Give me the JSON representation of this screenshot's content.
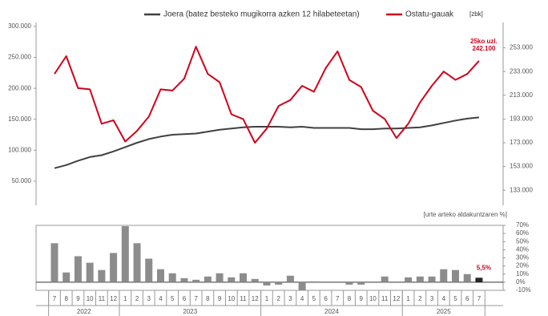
{
  "chart_data": [
    {
      "type": "line",
      "legend_position": "top",
      "y2_label": "[zbk]",
      "ylim": [
        20000,
        300000
      ],
      "yticks": [
        {
          "value": 50000,
          "label": "50.000"
        },
        {
          "value": 100000,
          "label": "100.000"
        },
        {
          "value": 150000,
          "label": "150.000"
        },
        {
          "value": 200000,
          "label": "200.000"
        },
        {
          "value": 250000,
          "label": "250.000"
        },
        {
          "value": 300000,
          "label": "300.000"
        }
      ],
      "y2lim": [
        125000,
        271000
      ],
      "y2ticks": [
        {
          "value": 133000,
          "label": "133.000"
        },
        {
          "value": 153000,
          "label": "153.000"
        },
        {
          "value": 173000,
          "label": "173.000"
        },
        {
          "value": 193000,
          "label": "193.000"
        },
        {
          "value": 213000,
          "label": "213.000"
        },
        {
          "value": 233000,
          "label": "233.000"
        },
        {
          "value": 253000,
          "label": "253.000"
        }
      ],
      "series": [
        {
          "name": "Joera (batez besteko mugikorra azken 12 hilabeteetan)",
          "color": "#404040",
          "values": [
            71000,
            76000,
            83000,
            89000,
            92000,
            98000,
            105000,
            112000,
            118000,
            122000,
            125000,
            126000,
            127000,
            130000,
            133000,
            135000,
            137000,
            138000,
            138000,
            138000,
            137000,
            138000,
            136000,
            136000,
            136000,
            136000,
            134000,
            134000,
            135000,
            135000,
            136000,
            137000,
            140000,
            144000,
            148000,
            151000,
            153000
          ]
        },
        {
          "name": "Ostatu-gauak",
          "color": "#d0021b",
          "axis": "y2",
          "values": [
            231000,
            246000,
            219000,
            218000,
            189000,
            192000,
            174000,
            183000,
            195000,
            218000,
            217000,
            227000,
            254000,
            231000,
            224000,
            197000,
            193000,
            173000,
            185000,
            204000,
            209000,
            221000,
            216000,
            236000,
            250000,
            226000,
            220000,
            200000,
            193000,
            177000,
            189000,
            207000,
            221000,
            233000,
            226000,
            231000,
            242100
          ]
        }
      ],
      "annotation": {
        "lines": [
          "25ko uzl.",
          "242.100"
        ],
        "value": 242100
      }
    },
    {
      "type": "bar",
      "y_label": "[urte arteko aldakuntzaren %]",
      "categories": [
        "7",
        "8",
        "9",
        "10",
        "11",
        "12",
        "1",
        "2",
        "3",
        "4",
        "5",
        "6",
        "7",
        "8",
        "9",
        "10",
        "11",
        "12",
        "1",
        "2",
        "3",
        "4",
        "5",
        "6",
        "7",
        "8",
        "9",
        "10",
        "11",
        "12",
        "1",
        "2",
        "3",
        "4",
        "5",
        "6",
        "7"
      ],
      "years": [
        "2022",
        "2023",
        "2024",
        "2025"
      ],
      "values": [
        48,
        12,
        32,
        24,
        15,
        36,
        69,
        48,
        29,
        16,
        11,
        5,
        3,
        7,
        11,
        6,
        11,
        4,
        -4,
        -3,
        8,
        -10,
        1,
        0,
        0,
        -3,
        -3,
        0,
        7,
        0,
        6,
        7,
        7,
        16,
        15,
        10,
        5.5
      ],
      "value_labels": [
        null,
        null,
        null,
        null,
        null,
        null,
        null,
        null,
        null,
        null,
        null,
        null,
        null,
        null,
        null,
        null,
        null,
        null,
        null,
        null,
        null,
        null,
        null,
        null,
        null,
        null,
        null,
        null,
        null,
        null,
        null,
        null,
        null,
        null,
        null,
        null,
        "5,5%"
      ],
      "color": "#8c8c8c",
      "highlight_color": "#262626",
      "ylim": [
        -10,
        70
      ],
      "yticks": [
        {
          "value": -10,
          "label": "-10%"
        },
        {
          "value": 0,
          "label": "0%"
        },
        {
          "value": 10,
          "label": "10%"
        },
        {
          "value": 20,
          "label": "20%"
        },
        {
          "value": 30,
          "label": "30%"
        },
        {
          "value": 40,
          "label": "40%"
        },
        {
          "value": 50,
          "label": "50%"
        },
        {
          "value": 60,
          "label": "60%"
        },
        {
          "value": 70,
          "label": "70%"
        }
      ]
    }
  ]
}
